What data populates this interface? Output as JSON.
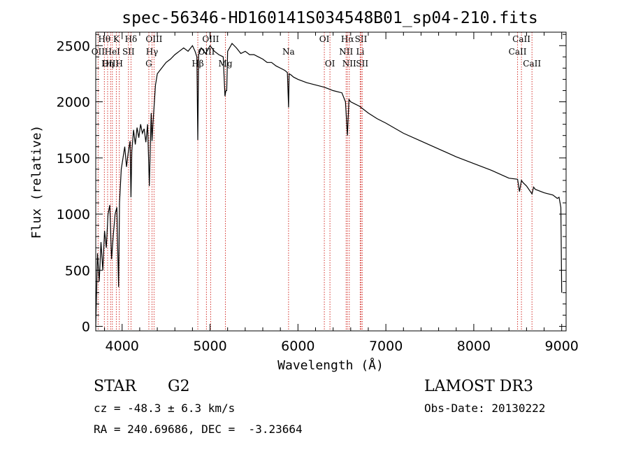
{
  "chart_data": {
    "type": "line",
    "title": "spec-56346-HD160141S034548B01_sp04-210.fits",
    "xlabel": "Wavelength (Å)",
    "ylabel": "Flux (relative)",
    "xlim": [
      3700,
      9050
    ],
    "ylim": [
      -40,
      2620
    ],
    "xticks": [
      4000,
      5000,
      6000,
      7000,
      8000,
      9000
    ],
    "yticks": [
      0,
      500,
      1000,
      1500,
      2000,
      2500
    ],
    "xtick_labels": [
      "4000",
      "5000",
      "6000",
      "7000",
      "8000",
      "9000"
    ],
    "ytick_labels": [
      "0",
      "500",
      "1000",
      "1500",
      "2000",
      "2500"
    ],
    "series": [
      {
        "name": "spectrum",
        "color": "#000000",
        "x": [
          3700,
          3720,
          3740,
          3760,
          3780,
          3800,
          3820,
          3840,
          3860,
          3880,
          3900,
          3920,
          3940,
          3950,
          3960,
          3970,
          3990,
          4010,
          4030,
          4050,
          4070,
          4090,
          4101,
          4110,
          4130,
          4150,
          4170,
          4190,
          4210,
          4230,
          4250,
          4270,
          4290,
          4310,
          4330,
          4340,
          4350,
          4380,
          4400,
          4450,
          4500,
          4550,
          4600,
          4650,
          4700,
          4750,
          4800,
          4830,
          4850,
          4861,
          4870,
          4900,
          4950,
          5000,
          5050,
          5100,
          5150,
          5170,
          5180,
          5190,
          5200,
          5250,
          5300,
          5350,
          5400,
          5450,
          5500,
          5550,
          5600,
          5650,
          5700,
          5750,
          5800,
          5850,
          5880,
          5893,
          5900,
          5920,
          5950,
          6000,
          6100,
          6200,
          6300,
          6400,
          6500,
          6540,
          6563,
          6580,
          6600,
          6700,
          6800,
          6900,
          7000,
          7200,
          7400,
          7600,
          7800,
          8000,
          8200,
          8400,
          8498,
          8520,
          8542,
          8560,
          8600,
          8662,
          8680,
          8700,
          8800,
          8900,
          8950,
          8970,
          8990,
          9000
        ],
        "y": [
          0,
          650,
          400,
          750,
          500,
          850,
          700,
          1000,
          1080,
          600,
          820,
          1000,
          1060,
          700,
          350,
          1100,
          1400,
          1500,
          1600,
          1420,
          1550,
          1650,
          1150,
          1560,
          1750,
          1620,
          1770,
          1680,
          1800,
          1720,
          1760,
          1640,
          1800,
          1250,
          1900,
          1650,
          1800,
          2150,
          2250,
          2300,
          2350,
          2380,
          2420,
          2450,
          2480,
          2450,
          2500,
          2450,
          2400,
          1660,
          2420,
          2480,
          2430,
          2500,
          2450,
          2420,
          2400,
          2050,
          2100,
          2100,
          2450,
          2520,
          2480,
          2430,
          2450,
          2420,
          2420,
          2400,
          2380,
          2350,
          2350,
          2320,
          2300,
          2280,
          2260,
          1950,
          2250,
          2240,
          2220,
          2200,
          2170,
          2150,
          2130,
          2100,
          2080,
          2000,
          1700,
          2020,
          2000,
          1960,
          1900,
          1850,
          1810,
          1720,
          1650,
          1580,
          1510,
          1450,
          1390,
          1320,
          1310,
          1200,
          1300,
          1280,
          1250,
          1180,
          1240,
          1220,
          1190,
          1170,
          1140,
          1150,
          1060,
          300
        ]
      }
    ],
    "line_markers": [
      {
        "label": "Hθ",
        "x": 3798,
        "row": 0
      },
      {
        "label": "OII",
        "x": 3727,
        "row": 1
      },
      {
        "label": "OIII",
        "x": 3869,
        "row": 2
      },
      {
        "label": "K",
        "x": 3934,
        "row": 0
      },
      {
        "label": "HeI",
        "x": 3889,
        "row": 1
      },
      {
        "label": "Hη",
        "x": 3835,
        "row": 2
      },
      {
        "label": "Hδ",
        "x": 4101,
        "row": 0
      },
      {
        "label": "SII",
        "x": 4072,
        "row": 1
      },
      {
        "label": "H",
        "x": 3968,
        "row": 2
      },
      {
        "label": "OIII",
        "x": 4363,
        "row": 0
      },
      {
        "label": "Hγ",
        "x": 4340,
        "row": 1
      },
      {
        "label": "G",
        "x": 4304,
        "row": 2
      },
      {
        "label": "OIII",
        "x": 5007,
        "row": 0
      },
      {
        "label": "OIII",
        "x": 4959,
        "row": 1
      },
      {
        "label": "Hβ",
        "x": 4861,
        "row": 2
      },
      {
        "label": "Mg",
        "x": 5175,
        "row": 2
      },
      {
        "label": "Na",
        "x": 5893,
        "row": 1
      },
      {
        "label": "OI",
        "x": 6300,
        "row": 0
      },
      {
        "label": "OI",
        "x": 6364,
        "row": 2
      },
      {
        "label": "Hα",
        "x": 6563,
        "row": 0
      },
      {
        "label": "SII",
        "x": 6717,
        "row": 0
      },
      {
        "label": "NII",
        "x": 6548,
        "row": 1
      },
      {
        "label": "Li",
        "x": 6708,
        "row": 1
      },
      {
        "label": "NII",
        "x": 6584,
        "row": 2
      },
      {
        "label": "SII",
        "x": 6731,
        "row": 2
      },
      {
        "label": "CaII",
        "x": 8542,
        "row": 0
      },
      {
        "label": "CaII",
        "x": 8498,
        "row": 1
      },
      {
        "label": "CaII",
        "x": 8662,
        "row": 2
      }
    ],
    "marker_color": "#d4302a"
  },
  "info": {
    "object_class": "STAR",
    "subclass": "G2",
    "survey": "LAMOST DR3",
    "cz": "cz = -48.3 ± 6.3 km/s",
    "obs_date": "Obs-Date: 20130222",
    "radec": "RA = 240.69686, DEC =  -3.23664"
  }
}
